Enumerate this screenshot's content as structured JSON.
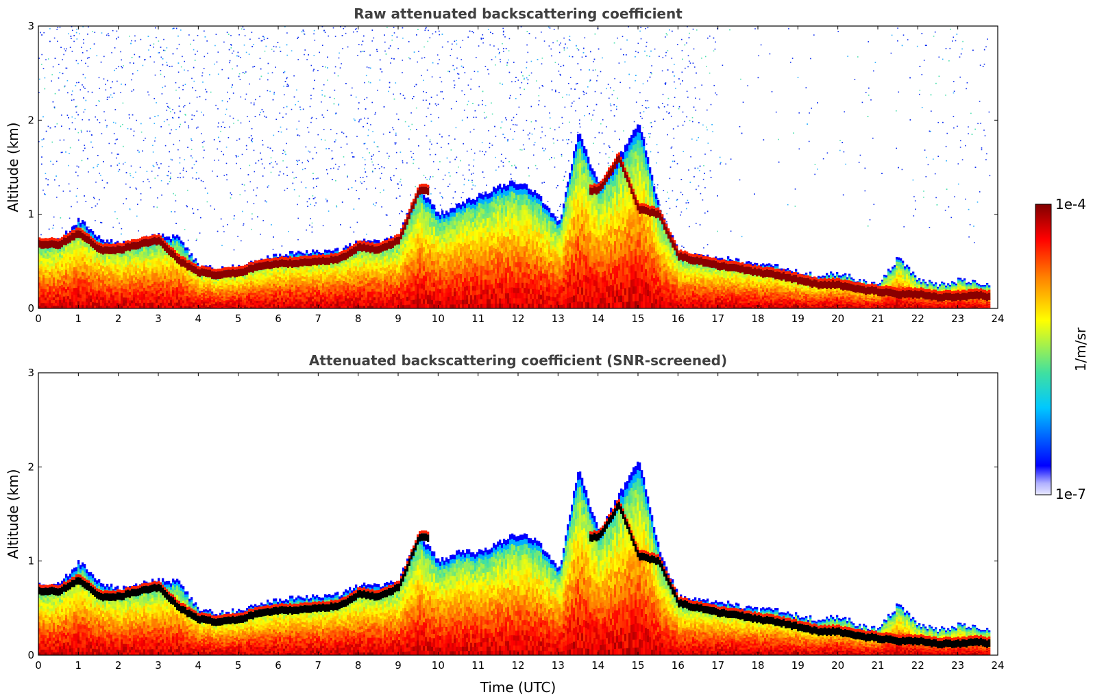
{
  "chart_data": [
    {
      "type": "heatmap",
      "title": "Raw attenuated backscattering coefficient",
      "xlabel": "",
      "ylabel": "Altitude (km)",
      "xlim": [
        0,
        24
      ],
      "ylim": [
        0,
        3
      ],
      "x_ticks": [
        "0",
        "1",
        "2",
        "3",
        "4",
        "5",
        "6",
        "7",
        "8",
        "9",
        "10",
        "11",
        "12",
        "13",
        "14",
        "15",
        "16",
        "17",
        "18",
        "19",
        "20",
        "21",
        "22",
        "23",
        "24"
      ],
      "y_ticks": [
        "0",
        "1",
        "2",
        "3"
      ],
      "screened": false,
      "noise_level": "high",
      "profile_time": [
        0,
        0.5,
        1.0,
        1.5,
        2.0,
        2.5,
        3.0,
        3.5,
        4.0,
        4.5,
        5.0,
        5.5,
        6.0,
        6.5,
        7.0,
        7.5,
        8.0,
        8.5,
        9.0,
        9.5,
        10.0,
        10.5,
        11.0,
        11.5,
        12.0,
        12.5,
        13.0,
        13.5,
        14.0,
        14.5,
        15.0,
        15.5,
        16.0,
        16.5,
        17.0,
        17.5,
        18.0,
        18.5,
        19.0,
        19.5,
        20.0,
        20.5,
        21.0,
        21.5,
        22.0,
        22.5,
        23.0,
        23.5,
        23.8
      ],
      "layer_top_km": [
        0.72,
        0.72,
        0.95,
        0.75,
        0.68,
        0.72,
        0.78,
        0.75,
        0.45,
        0.42,
        0.45,
        0.52,
        0.58,
        0.6,
        0.6,
        0.62,
        0.72,
        0.72,
        0.78,
        1.3,
        1.0,
        1.1,
        1.2,
        1.3,
        1.35,
        1.2,
        0.9,
        1.9,
        1.3,
        1.6,
        2.0,
        1.1,
        0.6,
        0.55,
        0.55,
        0.5,
        0.45,
        0.45,
        0.38,
        0.35,
        0.38,
        0.3,
        0.25,
        0.55,
        0.3,
        0.25,
        0.3,
        0.28,
        0.25
      ],
      "peak_layer_km": [
        0.68,
        0.68,
        0.8,
        0.62,
        0.62,
        0.68,
        0.72,
        0.5,
        0.38,
        0.35,
        0.38,
        0.45,
        0.48,
        0.48,
        0.5,
        0.52,
        0.65,
        0.62,
        0.72,
        1.25,
        null,
        null,
        null,
        null,
        null,
        null,
        null,
        null,
        1.25,
        1.6,
        1.05,
        1.0,
        0.55,
        0.5,
        0.45,
        0.42,
        0.38,
        0.35,
        0.3,
        0.25,
        0.25,
        0.2,
        0.18,
        0.15,
        0.15,
        0.12,
        0.12,
        0.14,
        0.12
      ]
    },
    {
      "type": "heatmap",
      "title": "Attenuated backscattering coefficient (SNR-screened)",
      "xlabel": "Time (UTC)",
      "ylabel": "Altitude (km)",
      "xlim": [
        0,
        24
      ],
      "ylim": [
        0,
        3
      ],
      "x_ticks": [
        "0",
        "1",
        "2",
        "3",
        "4",
        "5",
        "6",
        "7",
        "8",
        "9",
        "10",
        "11",
        "12",
        "13",
        "14",
        "15",
        "16",
        "17",
        "18",
        "19",
        "20",
        "21",
        "22",
        "23",
        "24"
      ],
      "y_ticks": [
        "0",
        "1",
        "2",
        "3"
      ],
      "screened": true,
      "noise_level": "none",
      "profile_time": [
        0,
        0.5,
        1.0,
        1.5,
        2.0,
        2.5,
        3.0,
        3.5,
        4.0,
        4.5,
        5.0,
        5.5,
        6.0,
        6.5,
        7.0,
        7.5,
        8.0,
        8.5,
        9.0,
        9.5,
        10.0,
        10.5,
        11.0,
        11.5,
        12.0,
        12.5,
        13.0,
        13.5,
        14.0,
        14.5,
        15.0,
        15.5,
        16.0,
        16.5,
        17.0,
        17.5,
        18.0,
        18.5,
        19.0,
        19.5,
        20.0,
        20.5,
        21.0,
        21.5,
        22.0,
        22.5,
        23.0,
        23.5,
        23.8
      ],
      "layer_top_km": [
        0.75,
        0.75,
        1.0,
        0.78,
        0.7,
        0.75,
        0.8,
        0.78,
        0.48,
        0.45,
        0.48,
        0.55,
        0.6,
        0.62,
        0.62,
        0.65,
        0.75,
        0.75,
        0.8,
        1.3,
        1.0,
        1.1,
        1.1,
        1.2,
        1.3,
        1.2,
        0.9,
        2.0,
        1.3,
        1.7,
        2.1,
        1.15,
        0.62,
        0.58,
        0.58,
        0.52,
        0.48,
        0.48,
        0.42,
        0.38,
        0.42,
        0.32,
        0.28,
        0.55,
        0.32,
        0.27,
        0.32,
        0.3,
        0.27
      ],
      "peak_layer_km": [
        0.68,
        0.68,
        0.8,
        0.62,
        0.62,
        0.68,
        0.72,
        0.5,
        0.38,
        0.35,
        0.38,
        0.45,
        0.48,
        0.48,
        0.5,
        0.52,
        0.65,
        0.62,
        0.72,
        1.25,
        null,
        null,
        null,
        null,
        null,
        null,
        null,
        null,
        1.25,
        1.6,
        1.05,
        1.0,
        0.55,
        0.5,
        0.45,
        0.42,
        0.38,
        0.35,
        0.3,
        0.25,
        0.25,
        0.2,
        0.18,
        0.15,
        0.15,
        0.12,
        0.12,
        0.14,
        0.12
      ]
    }
  ],
  "colorbar": {
    "label": "1/m/sr",
    "max_label": "1e-4",
    "min_label": "1e-7",
    "colormap": "jet",
    "colors": [
      "#e8e8ff",
      "#0000ff",
      "#00c8ff",
      "#40e0a0",
      "#ffff00",
      "#ff8000",
      "#ff0000",
      "#800000"
    ],
    "saturation_color": "#000000"
  }
}
